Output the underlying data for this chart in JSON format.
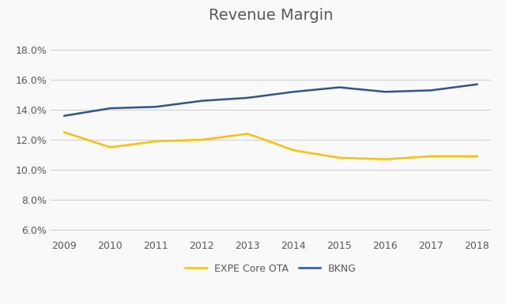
{
  "title": "Revenue Margin",
  "years": [
    2009,
    2010,
    2011,
    2012,
    2013,
    2014,
    2015,
    2016,
    2017,
    2018
  ],
  "expe": [
    0.125,
    0.115,
    0.119,
    0.12,
    0.124,
    0.113,
    0.108,
    0.107,
    0.109,
    0.109
  ],
  "bkng": [
    0.136,
    0.141,
    0.142,
    0.146,
    0.148,
    0.152,
    0.155,
    0.152,
    0.153,
    0.157
  ],
  "expe_color": "#FFC000",
  "bkng_color": "#2F5496",
  "expe_label": "EXPE Core OTA",
  "bkng_label": "BKNG",
  "ylim_min": 0.055,
  "ylim_max": 0.193,
  "yticks": [
    0.06,
    0.08,
    0.1,
    0.12,
    0.14,
    0.16,
    0.18
  ],
  "background_color": "#f9f9f9",
  "title_fontsize": 14,
  "title_color": "#595959",
  "tick_color": "#595959",
  "line_width": 1.8,
  "legend_fontsize": 9,
  "grid_color": "#d0d0d0"
}
